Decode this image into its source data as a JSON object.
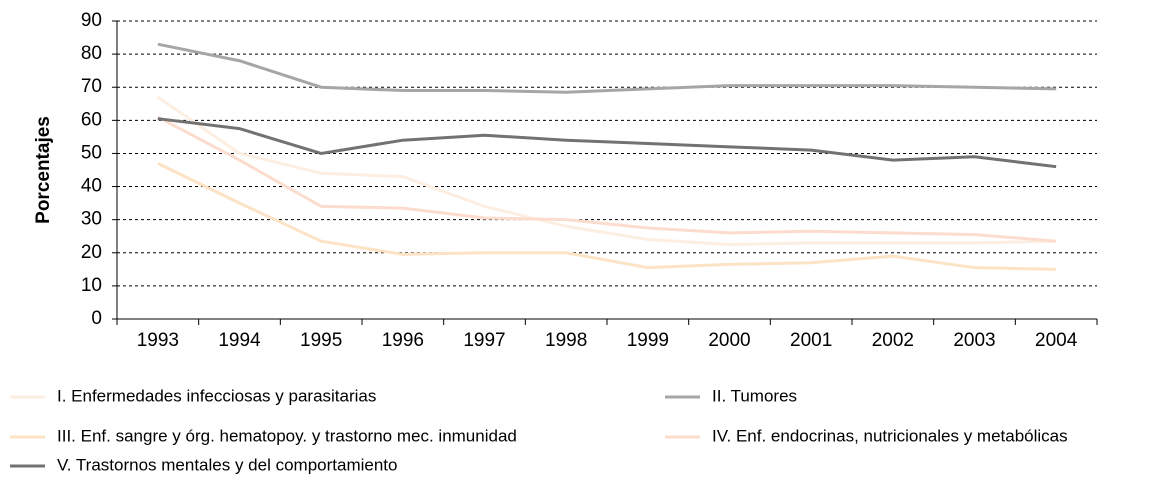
{
  "chart_data": {
    "type": "line",
    "y_label": "Porcentajes",
    "categories": [
      "1993",
      "1994",
      "1995",
      "1996",
      "1997",
      "1998",
      "1999",
      "2000",
      "2001",
      "2002",
      "2003",
      "2004"
    ],
    "ylim": [
      0,
      90
    ],
    "yticks": [
      0,
      10,
      20,
      30,
      40,
      50,
      60,
      70,
      80,
      90
    ],
    "grid": true,
    "series": [
      {
        "name": "I. Enfermedades infecciosas y parasitarias",
        "color": "#fdeee2",
        "values": [
          67,
          50,
          44,
          43,
          34,
          28,
          24,
          22.5,
          23,
          23,
          23,
          23.5
        ]
      },
      {
        "name": "II. Tumores",
        "color": "#a6a6a6",
        "values": [
          83,
          78,
          70,
          69,
          69,
          68.5,
          69.5,
          70.5,
          70.5,
          70.5,
          70,
          69.5
        ]
      },
      {
        "name": "III. Enf. sangre y órg. hematopoy. y trastorno mec. inmunidad",
        "color": "#fde3c6",
        "values": [
          47,
          35,
          23.5,
          19.5,
          20,
          20,
          15.5,
          16.5,
          17,
          19,
          15.5,
          15
        ]
      },
      {
        "name": "IV. Enf. endocrinas, nutricionales y metabólicas",
        "color": "#fbdccd",
        "values": [
          61,
          48,
          34,
          33.5,
          30.5,
          30,
          27.5,
          26,
          26.5,
          26,
          25.5,
          23.5
        ]
      },
      {
        "name": "V. Trastornos mentales y del comportamiento",
        "color": "#727272",
        "values": [
          60.5,
          57.5,
          50,
          54,
          55.5,
          54,
          53,
          52,
          51,
          48,
          49,
          46
        ]
      }
    ]
  }
}
